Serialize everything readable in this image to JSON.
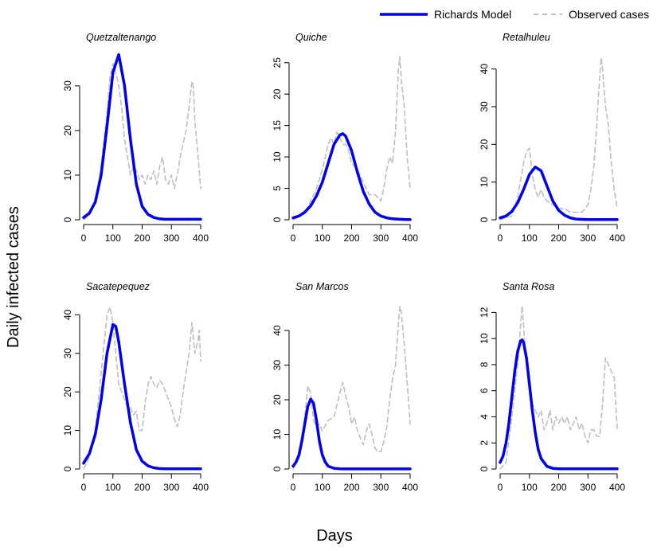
{
  "chart_data": {
    "type": "line",
    "ylabel": "Daily infected cases",
    "xlabel": "Days",
    "legend": {
      "position": "top-right",
      "entries": [
        {
          "label": "Richards Model",
          "color": "#0000ee",
          "style": "solid"
        },
        {
          "label": "Observed cases",
          "color": "#bebebe",
          "style": "dashed"
        }
      ]
    },
    "grid": false,
    "colors": {
      "model": "#0000ee",
      "observed": "#bebebe"
    },
    "panels": [
      {
        "title": "Quetzaltenango",
        "xlim": [
          0,
          400
        ],
        "ylim": [
          0,
          38
        ],
        "xticks": [
          0,
          100,
          200,
          300,
          400
        ],
        "yticks": [
          0,
          10,
          20,
          30
        ],
        "series": [
          {
            "name": "Richards Model",
            "x": [
              0,
              20,
              40,
              60,
              80,
              100,
              120,
              140,
              160,
              180,
              200,
              220,
              240,
              260,
              280,
              300,
              320,
              340,
              360,
              380,
              400
            ],
            "y": [
              0.5,
              1.5,
              4,
              10,
              21,
              33,
              37,
              30,
              18,
              8,
              3,
              1.2,
              0.5,
              0.2,
              0.1,
              0.1,
              0.1,
              0.1,
              0.1,
              0.1,
              0.1
            ]
          },
          {
            "name": "Observed cases",
            "x": [
              0,
              20,
              40,
              60,
              80,
              90,
              100,
              110,
              120,
              130,
              140,
              150,
              160,
              170,
              180,
              190,
              200,
              210,
              220,
              230,
              240,
              250,
              260,
              270,
              280,
              290,
              300,
              310,
              320,
              330,
              340,
              350,
              360,
              370,
              375,
              380,
              390,
              400
            ],
            "y": [
              0,
              1,
              4,
              12,
              24,
              32,
              35,
              33,
              30,
              25,
              18,
              14,
              10,
              12,
              11,
              9,
              10,
              8,
              10,
              9,
              11,
              8,
              12,
              14,
              9,
              8,
              10,
              7,
              10,
              14,
              17,
              20,
              25,
              31,
              30,
              22,
              15,
              7
            ]
          }
        ]
      },
      {
        "title": "Quiche",
        "xlim": [
          0,
          400
        ],
        "ylim": [
          0,
          27
        ],
        "xticks": [
          0,
          100,
          200,
          300,
          400
        ],
        "yticks": [
          0,
          5,
          10,
          15,
          20,
          25
        ],
        "series": [
          {
            "name": "Richards Model",
            "x": [
              0,
              20,
              40,
              60,
              80,
              100,
              120,
              140,
              160,
              170,
              180,
              200,
              220,
              240,
              260,
              280,
              300,
              320,
              340,
              360,
              380,
              400
            ],
            "y": [
              0.3,
              0.6,
              1.2,
              2.2,
              3.8,
              6,
              9,
              12,
              13.5,
              13.7,
              13.3,
              11,
              7.5,
              4.5,
              2.5,
              1.2,
              0.6,
              0.3,
              0.15,
              0.1,
              0.05,
              0.03
            ]
          },
          {
            "name": "Observed cases",
            "x": [
              0,
              40,
              60,
              80,
              100,
              120,
              130,
              140,
              150,
              160,
              170,
              180,
              190,
              200,
              220,
              240,
              260,
              280,
              300,
              310,
              320,
              330,
              340,
              350,
              360,
              365,
              370,
              380,
              390,
              400
            ],
            "y": [
              0,
              1,
              3,
              5,
              8,
              12,
              13,
              12,
              14,
              13,
              12,
              12,
              11,
              9,
              8,
              6,
              4,
              4,
              3,
              5,
              8,
              10,
              9,
              14,
              24,
              26,
              22,
              18,
              10,
              5
            ]
          }
        ]
      },
      {
        "title": "Retalhuleu",
        "xlim": [
          0,
          400
        ],
        "ylim": [
          0,
          45
        ],
        "xticks": [
          0,
          100,
          200,
          300,
          400
        ],
        "yticks": [
          0,
          10,
          20,
          30,
          40
        ],
        "series": [
          {
            "name": "Richards Model",
            "x": [
              0,
              20,
              40,
              60,
              80,
              100,
              120,
              140,
              160,
              180,
              200,
              220,
              240,
              260,
              280,
              300,
              320,
              340,
              360,
              380,
              400
            ],
            "y": [
              0.5,
              1,
              2.2,
              4.5,
              8,
              12,
              14,
              13,
              9,
              5,
              2.5,
              1.2,
              0.5,
              0.2,
              0.1,
              0.05,
              0.05,
              0.05,
              0.05,
              0.05,
              0.05
            ]
          },
          {
            "name": "Observed cases",
            "x": [
              0,
              40,
              60,
              80,
              90,
              100,
              110,
              120,
              130,
              140,
              150,
              160,
              180,
              200,
              220,
              240,
              260,
              280,
              300,
              310,
              320,
              330,
              340,
              345,
              350,
              360,
              370,
              380,
              390,
              400
            ],
            "y": [
              0,
              1,
              6,
              15,
              18,
              19,
              12,
              8,
              6,
              8,
              6,
              5,
              4,
              3,
              3,
              2,
              2,
              2,
              4,
              8,
              14,
              25,
              38,
              43,
              40,
              30,
              25,
              15,
              8,
              3
            ]
          }
        ]
      },
      {
        "title": "Sacatepequez",
        "xlim": [
          0,
          400
        ],
        "ylim": [
          0,
          44
        ],
        "xticks": [
          0,
          100,
          200,
          300,
          400
        ],
        "yticks": [
          0,
          10,
          20,
          30,
          40
        ],
        "series": [
          {
            "name": "Richards Model",
            "x": [
              0,
              20,
              40,
              60,
              80,
              100,
              110,
              120,
              140,
              160,
              180,
              200,
              220,
              240,
              260,
              280,
              300,
              320,
              340,
              360,
              380,
              400
            ],
            "y": [
              1.5,
              4,
              9,
              18,
              30,
              37.5,
              37,
              33,
              22,
              12,
              5,
              2,
              0.8,
              0.3,
              0.1,
              0.05,
              0.05,
              0.05,
              0.05,
              0.05,
              0.05,
              0.05
            ]
          },
          {
            "name": "Observed cases",
            "x": [
              0,
              20,
              40,
              60,
              80,
              90,
              100,
              110,
              120,
              130,
              140,
              150,
              160,
              170,
              180,
              190,
              200,
              210,
              220,
              230,
              240,
              250,
              260,
              270,
              280,
              290,
              300,
              310,
              320,
              330,
              340,
              350,
              360,
              370,
              380,
              390,
              395,
              400
            ],
            "y": [
              0,
              3,
              10,
              25,
              40,
              42,
              38,
              30,
              22,
              20,
              18,
              16,
              16,
              14,
              15,
              10,
              10,
              17,
              22,
              24,
              22,
              21,
              23,
              22,
              20,
              18,
              16,
              13,
              11,
              14,
              20,
              25,
              30,
              38,
              30,
              33,
              36,
              28
            ]
          }
        ]
      },
      {
        "title": "San Marcos",
        "xlim": [
          0,
          400
        ],
        "ylim": [
          0,
          49
        ],
        "xticks": [
          0,
          100,
          200,
          300,
          400
        ],
        "yticks": [
          0,
          10,
          20,
          30,
          40
        ],
        "series": [
          {
            "name": "Richards Model",
            "x": [
              0,
              10,
              20,
              30,
              40,
              50,
              60,
              70,
              80,
              90,
              100,
              110,
              120,
              140,
              160,
              180,
              200,
              240,
              280,
              320,
              360,
              400
            ],
            "y": [
              0.8,
              2,
              4,
              8,
              13,
              18,
              20.2,
              19,
              14,
              8,
              4,
              2,
              0.8,
              0.2,
              0.05,
              0.02,
              0.02,
              0.02,
              0.02,
              0.02,
              0.02,
              0.02
            ]
          },
          {
            "name": "Observed cases",
            "x": [
              0,
              20,
              40,
              50,
              60,
              70,
              80,
              90,
              100,
              120,
              140,
              160,
              170,
              180,
              190,
              200,
              210,
              220,
              230,
              240,
              250,
              260,
              270,
              280,
              290,
              300,
              310,
              320,
              330,
              340,
              350,
              360,
              365,
              370,
              380,
              390,
              400
            ],
            "y": [
              0,
              3,
              15,
              24,
              22,
              14,
              12,
              13,
              11,
              14,
              15,
              22,
              25,
              21,
              18,
              13,
              15,
              11,
              9,
              7,
              11,
              13,
              10,
              6,
              5,
              5,
              8,
              12,
              20,
              26,
              30,
              42,
              47,
              45,
              36,
              25,
              13
            ]
          }
        ]
      },
      {
        "title": "Santa Rosa",
        "xlim": [
          0,
          400
        ],
        "ylim": [
          0,
          13
        ],
        "xticks": [
          0,
          100,
          200,
          300,
          400
        ],
        "yticks": [
          0,
          2,
          4,
          6,
          8,
          10,
          12
        ],
        "series": [
          {
            "name": "Richards Model",
            "x": [
              0,
              10,
              20,
              30,
              40,
              50,
              60,
              70,
              75,
              80,
              90,
              100,
              110,
              120,
              130,
              140,
              160,
              180,
              200,
              240,
              280,
              320,
              360,
              400
            ],
            "y": [
              0.5,
              1,
              2,
              3.5,
              5.5,
              7.5,
              9,
              9.8,
              9.9,
              9.7,
              8.5,
              6.5,
              4.5,
              2.8,
              1.5,
              0.8,
              0.2,
              0.05,
              0.02,
              0.02,
              0.02,
              0.02,
              0.02,
              0.02
            ]
          },
          {
            "name": "Observed cases",
            "x": [
              0,
              20,
              40,
              60,
              70,
              75,
              80,
              90,
              100,
              110,
              120,
              130,
              140,
              150,
              160,
              170,
              180,
              190,
              200,
              210,
              220,
              230,
              240,
              250,
              260,
              270,
              280,
              290,
              300,
              310,
              320,
              330,
              340,
              350,
              360,
              370,
              380,
              390,
              400
            ],
            "y": [
              0,
              0.5,
              4,
              8,
              11,
              12.5,
              11,
              8,
              6,
              5,
              4.5,
              4,
              4.5,
              3,
              3.5,
              4.5,
              3,
              4,
              3.5,
              4,
              3.5,
              4,
              3,
              3.5,
              4,
              3,
              3.5,
              2.5,
              2,
              3,
              3,
              2.5,
              2.5,
              5,
              8.5,
              8,
              7.5,
              7,
              3
            ]
          }
        ]
      }
    ]
  }
}
